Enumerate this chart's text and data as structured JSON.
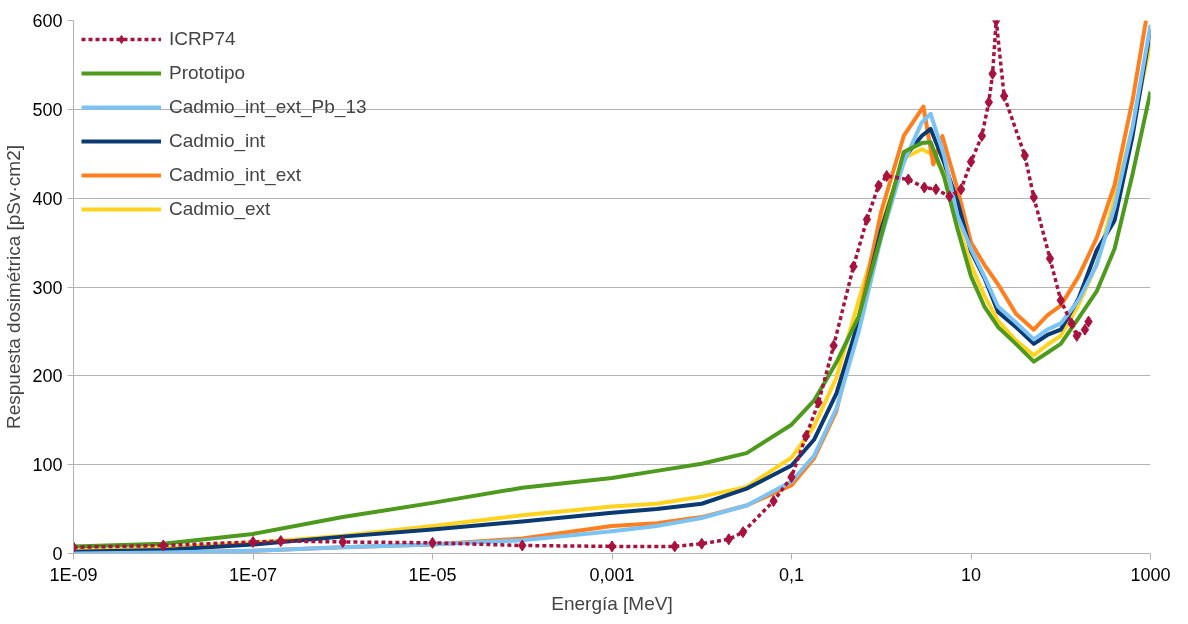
{
  "chart_data": {
    "type": "line",
    "xlabel": "Energía [MeV]",
    "ylabel": "Respuesta dosimétrica [pSv·cm2]",
    "log": "x",
    "xlim": [
      1e-09,
      1000
    ],
    "ylim": [
      0,
      600
    ],
    "xticks": [
      {
        "value": 1e-09,
        "label": "1E-09"
      },
      {
        "value": 1e-07,
        "label": "1E-07"
      },
      {
        "value": 1e-05,
        "label": "1E-05"
      },
      {
        "value": 0.001,
        "label": "0,001"
      },
      {
        "value": 0.1,
        "label": "0,1"
      },
      10,
      1000
    ],
    "yticks": [
      0,
      100,
      200,
      300,
      400,
      500,
      600
    ],
    "grid": "y",
    "legend": "top left",
    "series": [
      {
        "name": "ICRP74",
        "color": "#a8123e",
        "line_style": "dashed",
        "marker": "diamond",
        "x": [
          1e-09,
          1e-08,
          1e-07,
          2.04e-07,
          1e-06,
          1e-05,
          0.0001,
          0.001,
          0.005,
          0.01,
          0.02,
          0.0288,
          0.0631,
          0.1,
          0.145,
          0.2,
          0.295,
          0.49,
          0.692,
          0.933,
          1.15,
          2,
          3.02,
          4.07,
          5.75,
          7.76,
          10,
          13.2,
          15.8,
          17.4,
          19.1,
          23.4,
          39.8,
          50.1,
          75.9,
          100,
          132,
          151,
          186,
          204
        ],
        "values": [
          7,
          9,
          13,
          14,
          13,
          12,
          9,
          8,
          8,
          11,
          16,
          24,
          59,
          86,
          132,
          170,
          234,
          323,
          376,
          414,
          425,
          421,
          412,
          410,
          402,
          410,
          441,
          470,
          508,
          540,
          600,
          515,
          448,
          401,
          332,
          285,
          259,
          245,
          252,
          261
        ]
      },
      {
        "name": "Prototipo",
        "color": "#4e9a1f",
        "line_style": "solid",
        "marker": "none",
        "x": [
          1e-09,
          1e-08,
          1e-07,
          1e-06,
          1e-05,
          0.0001,
          0.001,
          0.00316,
          0.01,
          0.0316,
          0.1,
          0.178,
          0.316,
          0.562,
          1,
          1.78,
          2.82,
          3.55,
          5.01,
          7.08,
          10,
          14.1,
          20,
          31.6,
          50.1,
          70.8,
          100,
          158,
          251,
          398,
          631,
          1000
        ],
        "values": [
          8,
          11,
          22,
          41,
          57,
          74,
          85,
          93,
          101,
          113,
          145,
          172,
          215,
          267,
          358,
          452,
          462,
          463,
          424,
          365,
          312,
          278,
          255,
          236,
          216,
          226,
          236,
          265,
          295,
          343,
          427,
          520
        ]
      },
      {
        "name": "Cadmio_int_ext_Pb_13",
        "color": "#7cc3f5",
        "line_style": "solid",
        "marker": "none",
        "x": [
          1e-09,
          1e-08,
          1e-07,
          1e-06,
          1e-05,
          0.0001,
          0.001,
          0.00316,
          0.01,
          0.0316,
          0.1,
          0.178,
          0.316,
          0.562,
          1,
          1.78,
          2.82,
          3.55,
          5.01,
          7.08,
          10,
          14.1,
          20,
          31.6,
          50.1,
          70.8,
          100,
          158,
          251,
          398,
          631,
          1000
        ],
        "values": [
          0,
          1,
          3,
          7,
          10,
          15,
          25,
          31,
          40,
          54,
          81,
          110,
          163,
          250,
          356,
          440,
          485,
          495,
          448,
          380,
          343,
          312,
          278,
          260,
          241,
          252,
          259,
          285,
          325,
          390,
          480,
          595
        ]
      },
      {
        "name": "Cadmio_int",
        "color": "#0b3a73",
        "line_style": "solid",
        "marker": "none",
        "x": [
          1e-09,
          1e-08,
          1e-07,
          1e-06,
          1e-05,
          0.0001,
          0.001,
          0.00316,
          0.01,
          0.0316,
          0.1,
          0.178,
          0.316,
          0.562,
          1,
          1.78,
          2.82,
          3.55,
          5.01,
          7.08,
          10,
          14.1,
          20,
          31.6,
          50.1,
          70.8,
          100,
          158,
          251,
          398,
          631,
          1000
        ],
        "values": [
          2,
          4,
          10,
          19,
          27,
          36,
          46,
          50,
          56,
          73,
          99,
          128,
          180,
          262,
          365,
          445,
          470,
          478,
          440,
          396,
          340,
          310,
          272,
          255,
          236,
          246,
          252,
          287,
          341,
          375,
          470,
          590
        ]
      },
      {
        "name": "Cadmio_int_ext",
        "color": "#ff7f1e",
        "line_style": "solid",
        "marker": "none",
        "x": [
          1e-09,
          1e-08,
          1e-07,
          1e-06,
          1e-05,
          0.0001,
          0.001,
          0.00316,
          0.01,
          0.0316,
          0.1,
          0.178,
          0.316,
          0.562,
          1,
          1.78,
          2.95,
          3.8,
          4.79,
          7.08,
          10,
          14.1,
          20,
          31.6,
          50.1,
          70.8,
          100,
          158,
          251,
          398,
          631,
          891
        ],
        "values": [
          0,
          1,
          3,
          7,
          10,
          17,
          31,
          34,
          41,
          54,
          77,
          107,
          160,
          265,
          385,
          470,
          503,
          438,
          470,
          410,
          350,
          325,
          303,
          270,
          252,
          268,
          279,
          312,
          355,
          415,
          510,
          600
        ]
      },
      {
        "name": "Cadmio_ext",
        "color": "#ffd320",
        "line_style": "solid",
        "marker": "none",
        "x": [
          1e-09,
          1e-08,
          1e-07,
          1e-06,
          1e-05,
          0.0001,
          0.001,
          0.00316,
          0.01,
          0.0316,
          0.1,
          0.178,
          0.316,
          0.562,
          1,
          1.78,
          2.82,
          3.55,
          5.01,
          7.08,
          10,
          14.1,
          20,
          31.6,
          50.1,
          70.8,
          100,
          158,
          251,
          398,
          631,
          1000
        ],
        "values": [
          3,
          6,
          12,
          20,
          31,
          43,
          53,
          56,
          64,
          75,
          108,
          143,
          198,
          285,
          370,
          445,
          455,
          450,
          430,
          370,
          325,
          290,
          262,
          240,
          223,
          235,
          245,
          280,
          325,
          400,
          480,
          575
        ]
      }
    ]
  }
}
